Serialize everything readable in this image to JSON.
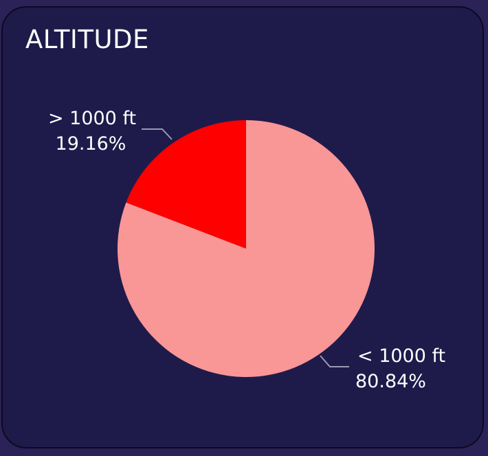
{
  "card": {
    "title": "ALTITUDE"
  },
  "colors": {
    "background": "#1e1b4b",
    "page": "#2b2258",
    "leader": "#9a9ab2"
  },
  "chart_data": {
    "type": "pie",
    "title": "ALTITUDE",
    "start_angle_deg": 0,
    "direction": "clockwise",
    "slices": [
      {
        "label": "< 1000 ft",
        "value": 80.84,
        "display": "80.84%",
        "color": "#f99696"
      },
      {
        "label": "> 1000 ft",
        "value": 19.16,
        "display": "19.16%",
        "color": "#ff0000"
      }
    ]
  }
}
